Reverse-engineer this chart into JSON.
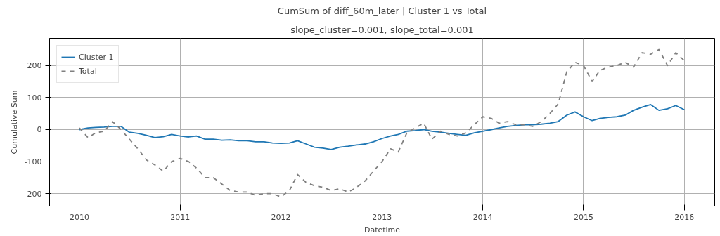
{
  "chart_data": {
    "type": "line",
    "title": "CumSum of diff_60m_later | Cluster 1 vs Total",
    "subtitle": "slope_cluster=0.001, slope_total=0.001",
    "xlabel": "Datetime",
    "ylabel": "Cumulative Sum",
    "x": [
      "2010-01",
      "2010-02",
      "2010-03",
      "2010-04",
      "2010-05",
      "2010-06",
      "2010-07",
      "2010-08",
      "2010-09",
      "2010-10",
      "2010-11",
      "2010-12",
      "2011-01",
      "2011-02",
      "2011-03",
      "2011-04",
      "2011-05",
      "2011-06",
      "2011-07",
      "2011-08",
      "2011-09",
      "2011-10",
      "2011-11",
      "2011-12",
      "2012-01",
      "2012-02",
      "2012-03",
      "2012-04",
      "2012-05",
      "2012-06",
      "2012-07",
      "2012-08",
      "2012-09",
      "2012-10",
      "2012-11",
      "2012-12",
      "2013-01",
      "2013-02",
      "2013-03",
      "2013-04",
      "2013-05",
      "2013-06",
      "2013-07",
      "2013-08",
      "2013-09",
      "2013-10",
      "2013-11",
      "2013-12",
      "2014-01",
      "2014-02",
      "2014-03",
      "2014-04",
      "2014-05",
      "2014-06",
      "2014-07",
      "2014-08",
      "2014-09",
      "2014-10",
      "2014-11",
      "2014-12",
      "2015-01",
      "2015-02",
      "2015-03",
      "2015-04",
      "2015-05",
      "2015-06",
      "2015-07",
      "2015-08",
      "2015-09",
      "2015-10",
      "2015-11",
      "2015-12",
      "2016-01"
    ],
    "series": [
      {
        "name": "Cluster 1",
        "color": "#1f77b4",
        "line_style": "solid",
        "values": [
          0,
          5,
          7,
          8,
          10,
          10,
          -8,
          -12,
          -18,
          -25,
          -22,
          -15,
          -20,
          -23,
          -20,
          -30,
          -30,
          -33,
          -32,
          -35,
          -35,
          -38,
          -38,
          -42,
          -43,
          -42,
          -35,
          -45,
          -55,
          -58,
          -62,
          -55,
          -52,
          -48,
          -45,
          -38,
          -28,
          -20,
          -15,
          -5,
          -3,
          0,
          -5,
          -8,
          -12,
          -15,
          -18,
          -10,
          -5,
          0,
          5,
          10,
          13,
          15,
          15,
          17,
          20,
          25,
          45,
          55,
          40,
          28,
          35,
          38,
          40,
          45,
          60,
          70,
          78,
          60,
          65,
          75,
          62
        ]
      },
      {
        "name": "Total",
        "color": "#808080",
        "line_style": "dashed",
        "values": [
          5,
          -25,
          -10,
          -5,
          25,
          0,
          -30,
          -60,
          -95,
          -110,
          -130,
          -100,
          -90,
          -100,
          -120,
          -150,
          -150,
          -170,
          -190,
          -195,
          -195,
          -205,
          -200,
          -200,
          -210,
          -190,
          -140,
          -165,
          -175,
          -180,
          -190,
          -185,
          -195,
          -180,
          -160,
          -130,
          -100,
          -60,
          -70,
          -10,
          5,
          20,
          -30,
          -5,
          -15,
          -20,
          -10,
          15,
          40,
          35,
          20,
          25,
          15,
          15,
          10,
          25,
          50,
          80,
          180,
          210,
          200,
          150,
          185,
          195,
          200,
          210,
          195,
          240,
          235,
          250,
          200,
          240,
          215
        ]
      }
    ],
    "xlim": [
      "2009-09-15",
      "2016-04-20"
    ],
    "ylim": [
      -239,
      285
    ],
    "xticks": [
      "2010",
      "2011",
      "2012",
      "2013",
      "2014",
      "2015",
      "2016"
    ],
    "yticks": [
      -200,
      -100,
      0,
      100,
      200
    ],
    "grid": true,
    "legend": "top left"
  }
}
